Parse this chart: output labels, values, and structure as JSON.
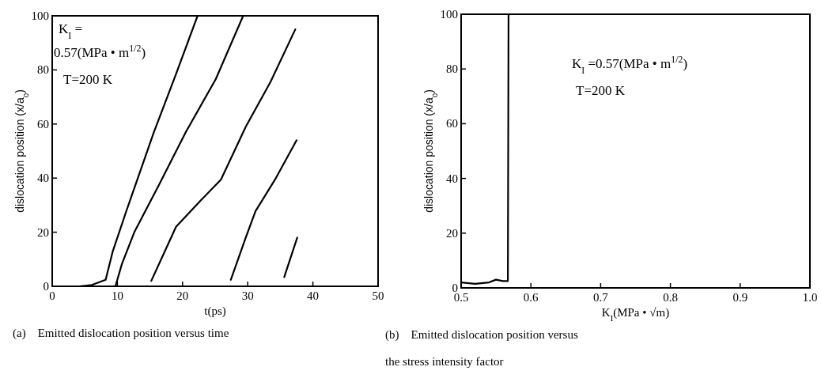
{
  "chart_data": [
    {
      "type": "line",
      "title": "(a)　Emitted dislocation position versus time",
      "xlabel": "t(ps)",
      "ylabel": "dislocation position (x/a$_{0}$)",
      "annotations": [
        "K$_{I}$ =",
        "0.57(MPa • m$^{1/2}$)",
        "T=200 K"
      ],
      "xlim": [
        0,
        50
      ],
      "xticks": [
        0,
        10,
        20,
        30,
        40,
        50
      ],
      "ylim": [
        0,
        100
      ],
      "yticks": [
        0,
        20,
        40,
        60,
        80,
        100
      ],
      "grid": false,
      "line_style": "solid",
      "series": [
        {
          "color": "#000000",
          "x": [
            4.2,
            6.1,
            8.2,
            9.3,
            11.4,
            15.6,
            19.0,
            22.3
          ],
          "values": [
            0,
            0.5,
            2.4,
            13,
            28,
            57,
            78.5,
            100
          ]
        },
        {
          "color": "#000000",
          "x": [
            9.7,
            10.7,
            12.6,
            16.4,
            20.5,
            25.1,
            29.3
          ],
          "values": [
            0,
            8.3,
            20,
            37.6,
            57,
            76.6,
            100
          ]
        },
        {
          "color": "#000000",
          "x": [
            15.2,
            17.1,
            19.0,
            22.1,
            25.9,
            29.7,
            33.5,
            37.3
          ],
          "values": [
            2,
            12,
            22,
            30,
            39.5,
            59,
            75.6,
            95
          ]
        },
        {
          "color": "#000000",
          "x": [
            27.4,
            29.7,
            31.2,
            34.2,
            37.5
          ],
          "values": [
            2.4,
            18,
            27.8,
            39.5,
            54
          ]
        },
        {
          "color": "#000000",
          "x": [
            35.6,
            37.6
          ],
          "values": [
            3.4,
            18
          ]
        }
      ]
    },
    {
      "type": "line",
      "title": "(b)　Emitted dislocation position versus the stress intensity factor",
      "xlabel": "K$_{I}$(MPa • √m)",
      "ylabel": "dislocation position (x/a$_{0}$)",
      "annotations": [
        "K$_{I}$ =0.57(MPa • m$^{1/2}$)",
        "T=200 K"
      ],
      "xlim": [
        0.5,
        1.0
      ],
      "xticks": [
        0.5,
        0.6,
        0.7,
        0.8,
        0.9,
        {
          "value": 1.0,
          "label": "1.0"
        }
      ],
      "ylim": [
        0,
        100
      ],
      "yticks": [
        0,
        20,
        40,
        60,
        80,
        100
      ],
      "grid": false,
      "line_style": "solid",
      "series": [
        {
          "color": "#000000",
          "x": [
            0.5,
            0.52,
            0.54,
            0.55,
            0.56,
            0.567,
            0.568
          ],
          "values": [
            2,
            1.5,
            2,
            3,
            2.5,
            2.5,
            100
          ]
        }
      ]
    }
  ]
}
